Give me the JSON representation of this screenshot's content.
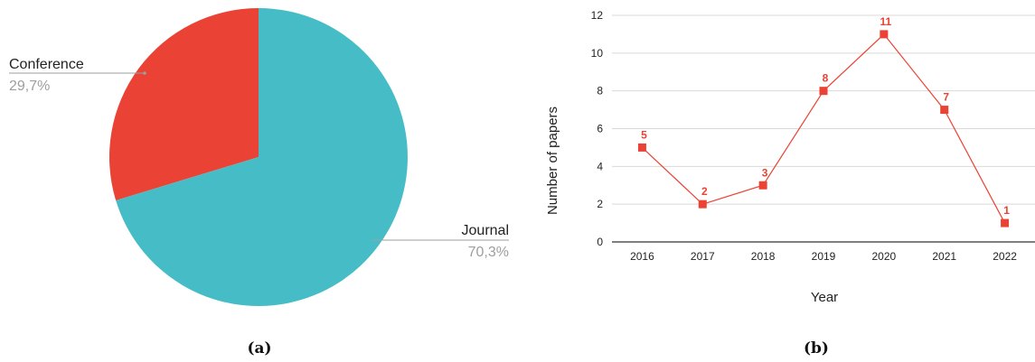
{
  "chart_data": [
    {
      "type": "pie",
      "categories": [
        "Conference",
        "Journal"
      ],
      "values": [
        29.7,
        70.3
      ],
      "value_labels": [
        "29,7%",
        "70,3%"
      ],
      "colors": [
        "#EA4335",
        "#46BDC6"
      ],
      "caption": "(a)"
    },
    {
      "type": "line",
      "x": [
        "2016",
        "2017",
        "2018",
        "2019",
        "2020",
        "2021",
        "2022"
      ],
      "series": [
        {
          "values": [
            5,
            2,
            3,
            8,
            11,
            7,
            1
          ],
          "color": "#EA4335"
        }
      ],
      "xlabel": "Year",
      "ylabel": "Number of papers",
      "ylim": [
        0,
        12
      ],
      "yticks": [
        "0",
        "2",
        "4",
        "6",
        "8",
        "10",
        "12"
      ],
      "grid": true,
      "caption": "(b)"
    }
  ]
}
